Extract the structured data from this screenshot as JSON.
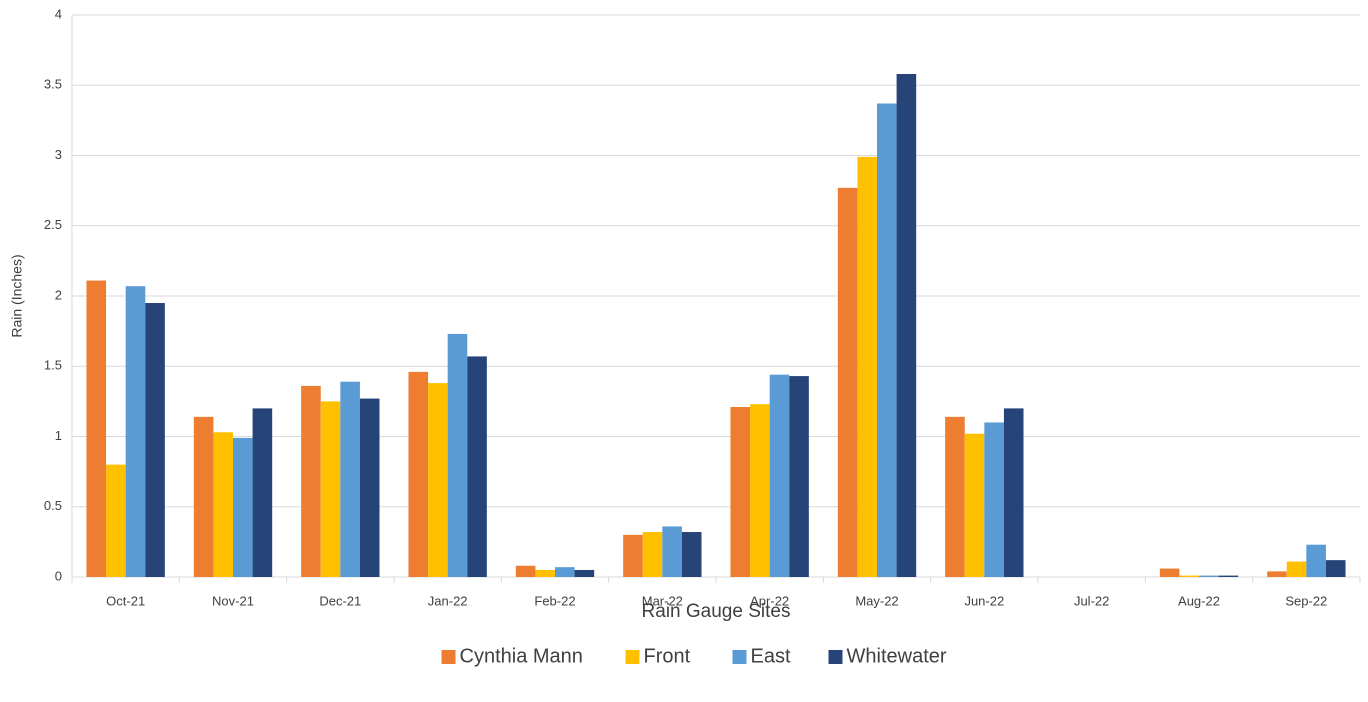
{
  "chart_data": {
    "type": "bar",
    "x_label": "Rain Gauge Sites",
    "y_label": "Rain (Inches)",
    "categories": [
      "Oct-21",
      "Nov-21",
      "Dec-21",
      "Jan-22",
      "Feb-22",
      "Mar-22",
      "Apr-22",
      "May-22",
      "Jun-22",
      "Jul-22",
      "Aug-22",
      "Sep-22"
    ],
    "series": [
      {
        "name": "Cynthia Mann",
        "color": "#ed7d31",
        "values": [
          2.11,
          1.14,
          1.36,
          1.46,
          0.08,
          0.3,
          1.21,
          2.77,
          1.14,
          0,
          0.06,
          0.04
        ]
      },
      {
        "name": "Front",
        "color": "#ffc000",
        "values": [
          0.8,
          1.03,
          1.25,
          1.38,
          0.05,
          0.32,
          1.23,
          2.99,
          1.02,
          0,
          0.01,
          0.11
        ]
      },
      {
        "name": "East",
        "color": "#5b9bd5",
        "values": [
          2.07,
          0.99,
          1.39,
          1.73,
          0.07,
          0.36,
          1.44,
          3.37,
          1.1,
          0,
          0.01,
          0.23
        ]
      },
      {
        "name": "Whitewater",
        "color": "#264478",
        "values": [
          1.95,
          1.2,
          1.27,
          1.57,
          0.05,
          0.32,
          1.43,
          3.58,
          1.2,
          0,
          0.01,
          0.12
        ]
      }
    ],
    "ylim": [
      0,
      4
    ],
    "yticks": [
      0,
      0.5,
      1,
      1.5,
      2,
      2.5,
      3,
      3.5,
      4
    ],
    "grid": true,
    "legend": "bottom"
  }
}
